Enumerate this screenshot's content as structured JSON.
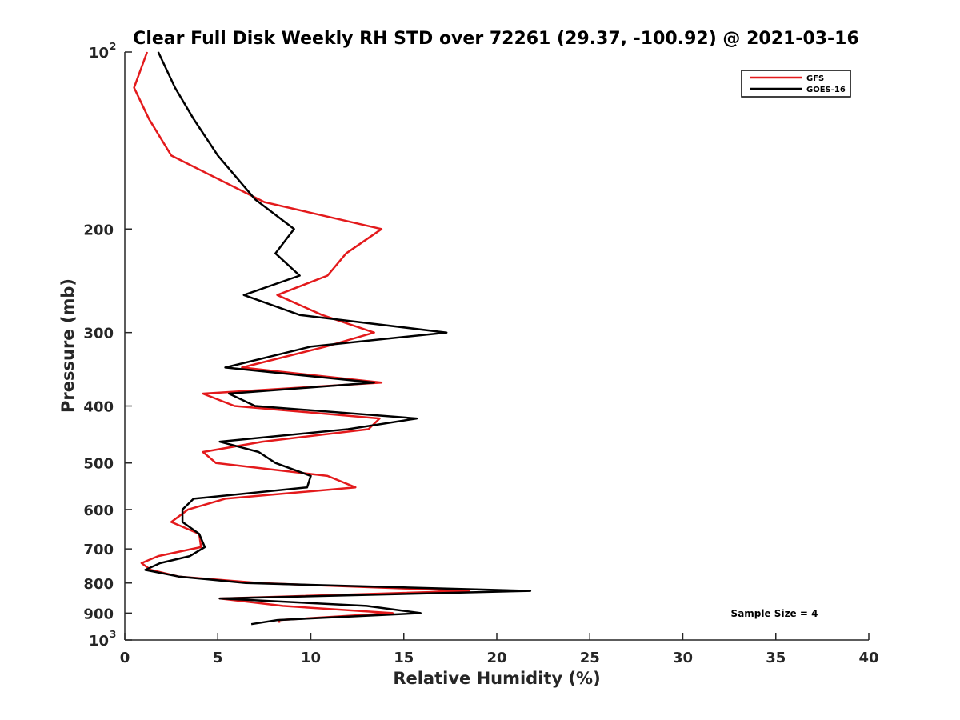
{
  "chart_data": {
    "type": "line",
    "title": "Clear Full Disk Weekly RH STD over 72261 (29.37, -100.92) @ 2021-03-16",
    "xlabel": "Relative Humidity (%)",
    "ylabel": "Pressure (mb)",
    "xlim": [
      0,
      40
    ],
    "ylim": [
      100,
      1000
    ],
    "y_scale": "log",
    "y_reversed": true,
    "grid": false,
    "legend_position": "top-right",
    "x_ticks": [
      0,
      5,
      10,
      15,
      20,
      25,
      30,
      35,
      40
    ],
    "y_ticks": [
      {
        "value": 100,
        "label": "10",
        "exp": "2"
      },
      {
        "value": 200,
        "label": "200"
      },
      {
        "value": 300,
        "label": "300"
      },
      {
        "value": 400,
        "label": "400"
      },
      {
        "value": 500,
        "label": "500"
      },
      {
        "value": 600,
        "label": "600"
      },
      {
        "value": 700,
        "label": "700"
      },
      {
        "value": 800,
        "label": "800"
      },
      {
        "value": 900,
        "label": "900"
      },
      {
        "value": 1000,
        "label": "10",
        "exp": "3"
      }
    ],
    "annotation": "Sample Size = 4",
    "series": [
      {
        "name": "GFS",
        "color": "#e31a1c",
        "points": [
          [
            1.2,
            100
          ],
          [
            0.5,
            115
          ],
          [
            1.3,
            130
          ],
          [
            2.5,
            150
          ],
          [
            7.5,
            180
          ],
          [
            13.8,
            200
          ],
          [
            11.9,
            220
          ],
          [
            10.9,
            240
          ],
          [
            8.2,
            259
          ],
          [
            10.6,
            280
          ],
          [
            13.4,
            300
          ],
          [
            10.8,
            317
          ],
          [
            6.3,
            344
          ],
          [
            13.8,
            365
          ],
          [
            4.2,
            381
          ],
          [
            5.9,
            400
          ],
          [
            13.7,
            420
          ],
          [
            13.1,
            438
          ],
          [
            7.4,
            460
          ],
          [
            4.2,
            479
          ],
          [
            4.9,
            500
          ],
          [
            10.9,
            526
          ],
          [
            12.4,
            550
          ],
          [
            5.4,
            575
          ],
          [
            3.4,
            600
          ],
          [
            2.5,
            630
          ],
          [
            4.0,
            660
          ],
          [
            4.1,
            695
          ],
          [
            1.8,
            720
          ],
          [
            0.9,
            740
          ],
          [
            1.4,
            760
          ],
          [
            2.9,
            780
          ],
          [
            7.2,
            800
          ],
          [
            18.5,
            825
          ],
          [
            5.1,
            850
          ],
          [
            8.5,
            875
          ],
          [
            14.4,
            900
          ],
          [
            8.3,
            925
          ],
          [
            8.3,
            935
          ]
        ]
      },
      {
        "name": "GOES-16",
        "color": "#000000",
        "points": [
          [
            1.8,
            100
          ],
          [
            2.7,
            115
          ],
          [
            3.7,
            130
          ],
          [
            5.0,
            150
          ],
          [
            7.0,
            178
          ],
          [
            9.1,
            200
          ],
          [
            8.1,
            220
          ],
          [
            9.4,
            240
          ],
          [
            6.4,
            259
          ],
          [
            9.4,
            280
          ],
          [
            17.3,
            300
          ],
          [
            10.0,
            317
          ],
          [
            5.4,
            344
          ],
          [
            13.4,
            365
          ],
          [
            5.6,
            381
          ],
          [
            7.0,
            400
          ],
          [
            15.7,
            420
          ],
          [
            12.0,
            438
          ],
          [
            5.1,
            460
          ],
          [
            7.2,
            479
          ],
          [
            8.1,
            500
          ],
          [
            10.0,
            526
          ],
          [
            9.8,
            550
          ],
          [
            3.7,
            575
          ],
          [
            3.1,
            600
          ],
          [
            3.1,
            630
          ],
          [
            4.0,
            660
          ],
          [
            4.3,
            695
          ],
          [
            3.5,
            720
          ],
          [
            1.9,
            740
          ],
          [
            1.1,
            760
          ],
          [
            2.9,
            780
          ],
          [
            6.5,
            800
          ],
          [
            21.8,
            825
          ],
          [
            5.1,
            850
          ],
          [
            13.0,
            875
          ],
          [
            15.9,
            900
          ],
          [
            8.2,
            925
          ],
          [
            6.8,
            940
          ]
        ]
      }
    ]
  }
}
